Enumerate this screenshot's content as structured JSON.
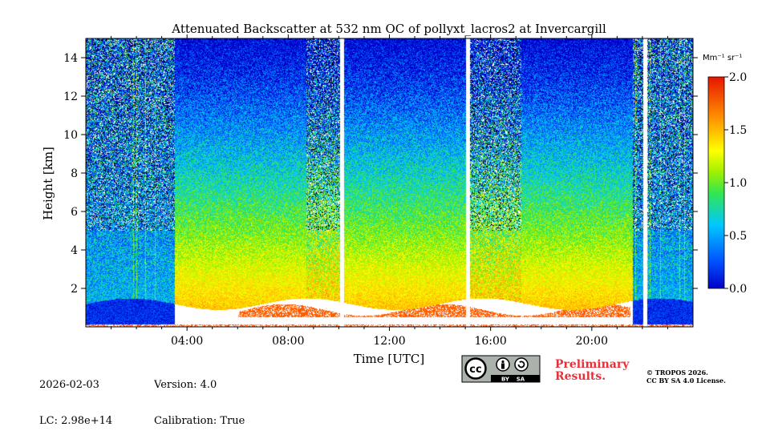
{
  "chart_data": {
    "type": "heatmap",
    "title": "Attenuated Backscatter at 532 nm OC of pollyxt_lacros2 at Invercargill",
    "xlabel": "Time [UTC]",
    "ylabel": "Height [km]",
    "xlim_hours": [
      0,
      24
    ],
    "ylim_km": [
      0,
      15
    ],
    "x_ticks": [
      {
        "hour": 4,
        "label": "04:00"
      },
      {
        "hour": 8,
        "label": "08:00"
      },
      {
        "hour": 12,
        "label": "12:00"
      },
      {
        "hour": 16,
        "label": "16:00"
      },
      {
        "hour": 20,
        "label": "20:00"
      }
    ],
    "y_ticks": [
      {
        "value": 2,
        "label": "2"
      },
      {
        "value": 4,
        "label": "4"
      },
      {
        "value": 6,
        "label": "6"
      },
      {
        "value": 8,
        "label": "8"
      },
      {
        "value": 10,
        "label": "10"
      },
      {
        "value": 12,
        "label": "12"
      },
      {
        "value": 14,
        "label": "14"
      }
    ],
    "colorbar": {
      "unit": "Mm⁻¹ sr⁻¹",
      "range": [
        0.0,
        2.0
      ],
      "ticks": [
        {
          "value": 0.0,
          "label": "0.0"
        },
        {
          "value": 0.5,
          "label": "0.5"
        },
        {
          "value": 1.0,
          "label": "1.0"
        },
        {
          "value": 1.5,
          "label": "1.5"
        },
        {
          "value": 2.0,
          "label": "2.0"
        }
      ],
      "colormap": "jet"
    },
    "data_gaps_hours": [
      10.1,
      15.1,
      22.1
    ],
    "cloud_base_km_approx": 1.2,
    "colors": {
      "no_data": "#ffffff",
      "low_cloud": "#ff4a00"
    }
  },
  "meta": {
    "date": "2026-02-03",
    "lc": "LC: 2.98e+14",
    "version": "Version: 4.0",
    "calibration": "Calibration: True",
    "preliminary_line1": "Preliminary",
    "preliminary_line2": "Results.",
    "copyright_line1": "© TROPOS 2026.",
    "copyright_line2": "CC BY SA 4.0 License.",
    "license_badge": "cc-by-sa-badge",
    "license_text_by": "BY",
    "license_text_sa": "SA"
  }
}
